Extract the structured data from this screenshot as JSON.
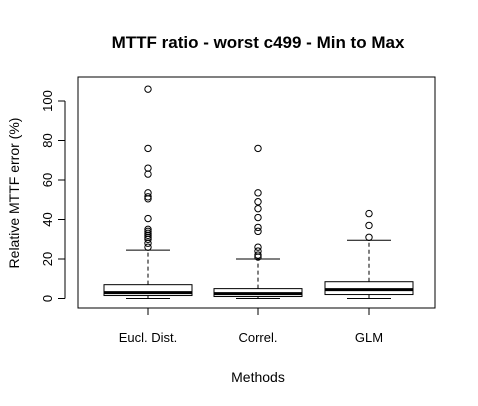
{
  "chart_data": {
    "type": "boxplot",
    "title": "MTTF ratio - worst c499 - Min to Max",
    "xlabel": "Methods",
    "ylabel": "Relative MTTF error (%)",
    "ylim": [
      -5,
      110
    ],
    "yticks": [
      0,
      20,
      40,
      60,
      80,
      100
    ],
    "grid": false,
    "categories": [
      "Eucl. Dist.",
      "Correl.",
      "GLM"
    ],
    "boxes": [
      {
        "name": "Eucl. Dist.",
        "whisker_low": 0,
        "q1": 1.5,
        "median": 3,
        "q3": 7,
        "whisker_high": 24.5,
        "outliers": [
          26,
          28,
          30,
          31,
          32,
          33,
          34,
          35,
          40.5,
          50.5,
          51.5,
          53.5,
          63,
          66,
          76,
          106
        ]
      },
      {
        "name": "Correl.",
        "whisker_low": 0,
        "q1": 1,
        "median": 2.5,
        "q3": 5,
        "whisker_high": 20,
        "outliers": [
          21,
          22,
          24,
          26,
          34,
          36,
          41,
          45.5,
          49,
          53.5,
          76
        ]
      },
      {
        "name": "GLM",
        "whisker_low": 0,
        "q1": 2,
        "median": 4.5,
        "q3": 8.5,
        "whisker_high": 29.5,
        "outliers": [
          31,
          37,
          43
        ]
      }
    ]
  }
}
